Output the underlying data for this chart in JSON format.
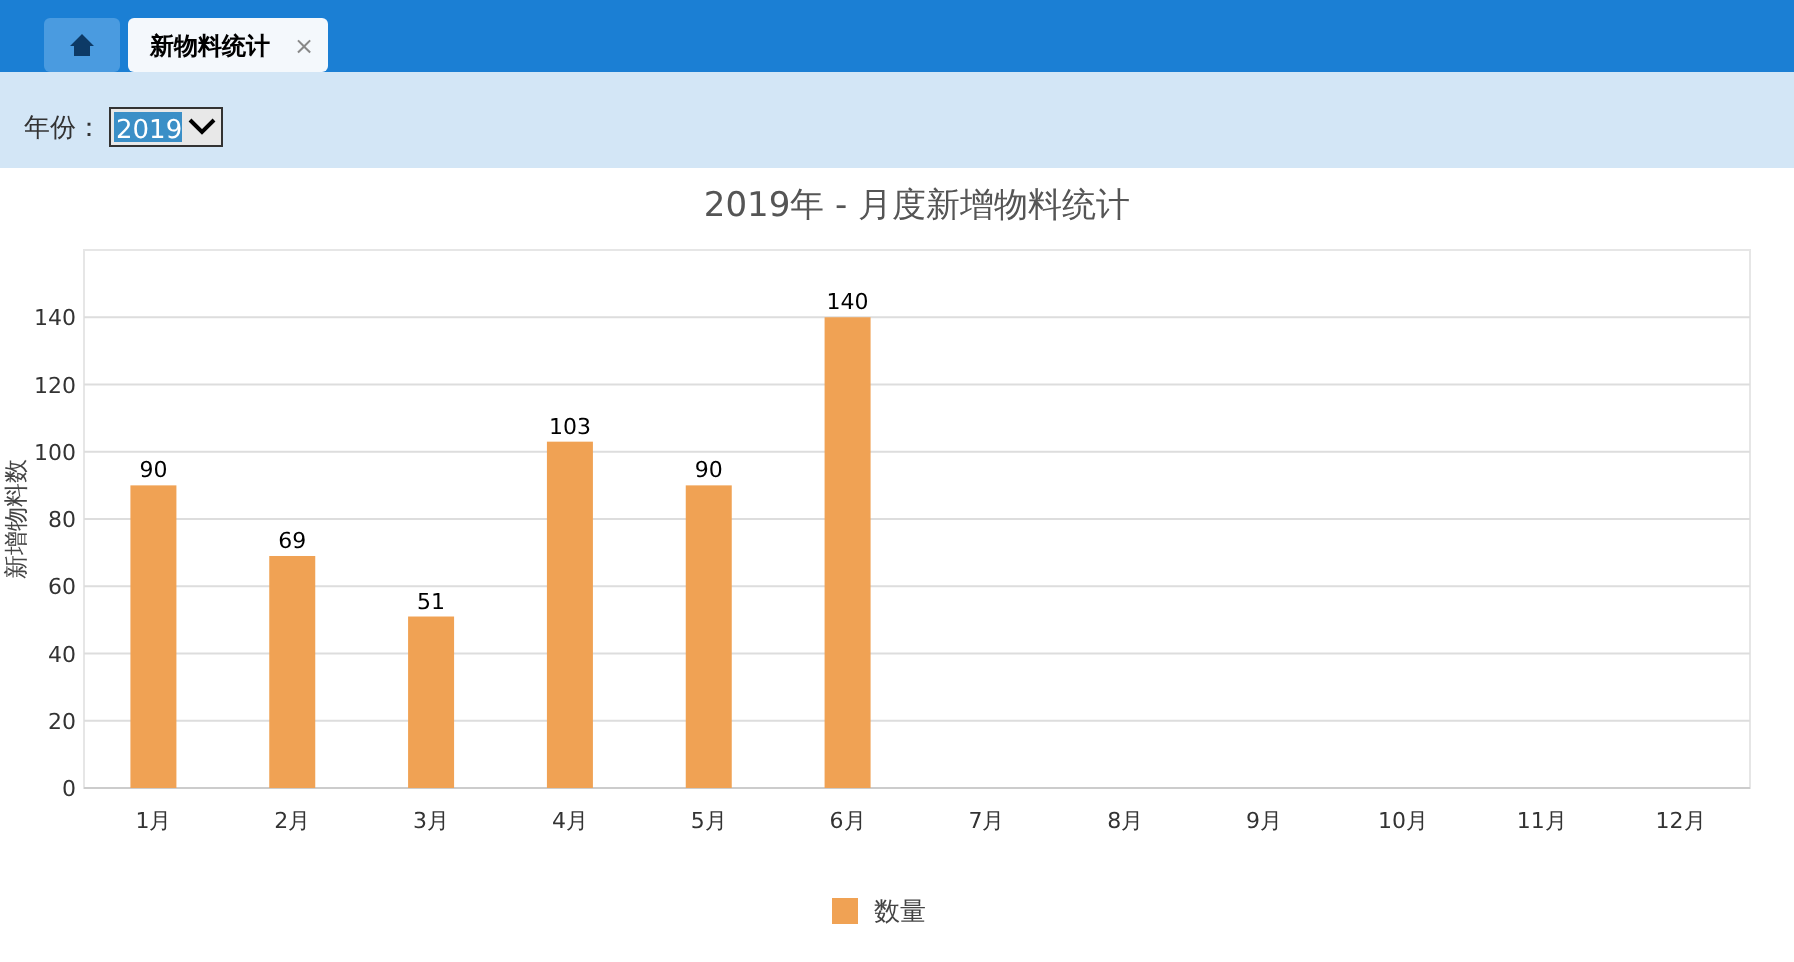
{
  "chart_data": {
    "type": "bar",
    "title": "2019年 - 月度新增物料统计",
    "annotations": [
      "新物料统计",
      "×",
      "年份：",
      "2019"
    ],
    "categories": [
      "1月",
      "2月",
      "3月",
      "4月",
      "5月",
      "6月",
      "7月",
      "8月",
      "9月",
      "10月",
      "11月",
      "12月"
    ],
    "series": [
      {
        "name": "数量",
        "color": "#f0a254",
        "values": [
          90,
          69,
          51,
          103,
          90,
          140,
          null,
          null,
          null,
          null,
          null,
          null
        ]
      }
    ],
    "ylabel": "新增物料数",
    "ylim": [
      0,
      160
    ],
    "yticks": [
      0,
      20,
      40,
      60,
      80,
      100,
      120,
      140
    ],
    "grid": "y",
    "legend": "bottom",
    "data_labels": true
  }
}
